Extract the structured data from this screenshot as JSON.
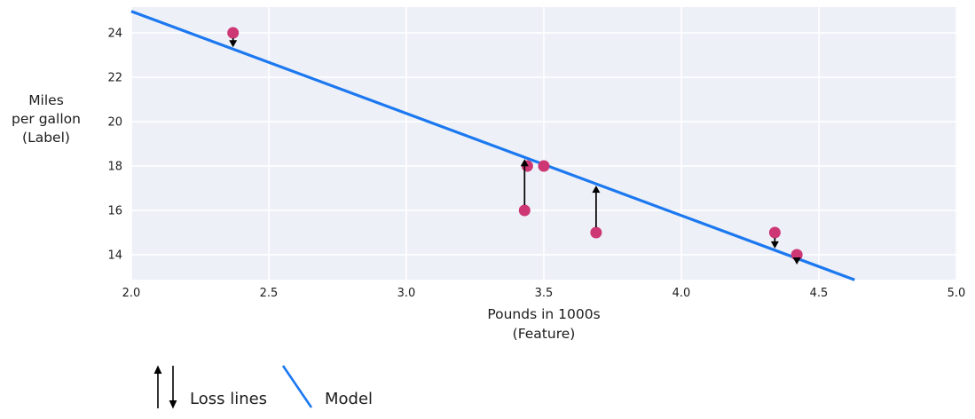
{
  "chart_data": {
    "type": "scatter",
    "xlabel_lines": [
      "Pounds in 1000s",
      "(Feature)"
    ],
    "ylabel_lines": [
      "Miles",
      "per gallon",
      "(Label)"
    ],
    "x_ticks": [
      2.0,
      2.5,
      3.0,
      3.5,
      4.0,
      4.5,
      5.0
    ],
    "x_tick_labels": [
      "2.0",
      "2.5",
      "3.0",
      "3.5",
      "4.0",
      "4.5",
      "5.0"
    ],
    "y_ticks": [
      14,
      16,
      18,
      20,
      22,
      24
    ],
    "y_tick_labels": [
      "14",
      "16",
      "18",
      "20",
      "22",
      "24"
    ],
    "xlim": [
      2.0,
      5.0
    ],
    "ylim": [
      12.88,
      25.16
    ],
    "grid": true,
    "points": [
      {
        "x": 2.37,
        "y": 24,
        "loss": "down"
      },
      {
        "x": 3.43,
        "y": 16,
        "loss": "up"
      },
      {
        "x": 3.44,
        "y": 18,
        "loss": "none"
      },
      {
        "x": 3.5,
        "y": 18,
        "loss": "none"
      },
      {
        "x": 3.69,
        "y": 15,
        "loss": "up"
      },
      {
        "x": 4.34,
        "y": 15,
        "loss": "down"
      },
      {
        "x": 4.42,
        "y": 14,
        "loss": "down"
      }
    ],
    "model": {
      "slope": -4.6,
      "intercept": 34.17,
      "x_start": 2.0,
      "x_end": 4.63
    },
    "legend": {
      "loss_label": "Loss lines",
      "model_label": "Model"
    },
    "colors": {
      "point": "#cd3773",
      "model_line": "#1b78f0",
      "arrow": "#000000",
      "plot_bg": "#edf0f7",
      "grid": "#ffffff",
      "text": "#1c1c1c"
    }
  }
}
